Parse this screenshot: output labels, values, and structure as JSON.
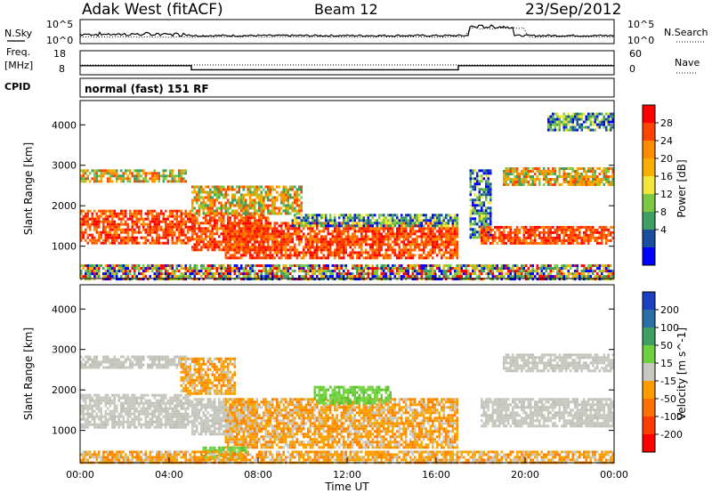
{
  "header": {
    "station": "Adak West (fitACF)",
    "beam": "Beam 12",
    "date": "23/Sep/2012"
  },
  "noise_panel": {
    "left_label": "N.Sky",
    "right_label": "N.Search",
    "left_ticks": [
      "10^5",
      "10^0"
    ],
    "right_ticks": [
      "10^5",
      "10^0"
    ]
  },
  "freq_panel": {
    "left_label_line1": "Freq.",
    "left_label_line2": "[MHz]",
    "right_label": "Nave",
    "left_ticks": [
      "18",
      "8"
    ],
    "right_ticks": [
      "60",
      "0"
    ]
  },
  "cpid_panel": {
    "label": "CPID",
    "text": "normal (fast) 151 RF"
  },
  "power_colorbar": {
    "label": "Power [dB]",
    "ticks": [
      "28",
      "24",
      "20",
      "16",
      "12",
      "8",
      "4"
    ],
    "colors": [
      "#ff0000",
      "#ff4400",
      "#ff8c00",
      "#f7b000",
      "#f2e63a",
      "#7dc843",
      "#3f9f63",
      "#1a4fa0",
      "#0000ff"
    ]
  },
  "velocity_colorbar": {
    "label": "Velocity [m s^-1]",
    "ticks": [
      "200",
      "100",
      "50",
      "15",
      "-15",
      "-50",
      "-100",
      "-200"
    ],
    "colors": [
      "#1a3fc0",
      "#2a6fa8",
      "#3f9f63",
      "#6fd03f",
      "#c8c8c0",
      "#ff9a00",
      "#ff7000",
      "#ff3c00",
      "#ff0000"
    ]
  },
  "chart_data": {
    "type": "heatmap",
    "panels": [
      {
        "name": "power",
        "ylabel": "Slant Range [km]",
        "ylim": [
          200,
          4600
        ],
        "yticks": [
          1000,
          2000,
          3000,
          4000
        ],
        "bands": [
          {
            "x": [
              0,
              5
            ],
            "y": [
              1050,
              1900
            ],
            "level": "strong"
          },
          {
            "x": [
              0,
              4.8
            ],
            "y": [
              2600,
              2900
            ],
            "level": "medium"
          },
          {
            "x": [
              5,
              8.5
            ],
            "y": [
              900,
              1800
            ],
            "level": "strong"
          },
          {
            "x": [
              5,
              10
            ],
            "y": [
              1800,
              2500
            ],
            "level": "medium"
          },
          {
            "x": [
              6.5,
              17
            ],
            "y": [
              700,
              1600
            ],
            "level": "strong"
          },
          {
            "x": [
              9.5,
              17
            ],
            "y": [
              1500,
              1800
            ],
            "level": "weak"
          },
          {
            "x": [
              17.5,
              18.5
            ],
            "y": [
              1200,
              2900
            ],
            "level": "weak"
          },
          {
            "x": [
              18,
              24
            ],
            "y": [
              1100,
              1500
            ],
            "level": "strong"
          },
          {
            "x": [
              19,
              24
            ],
            "y": [
              2500,
              2950
            ],
            "level": "medium"
          },
          {
            "x": [
              21,
              24
            ],
            "y": [
              3900,
              4300
            ],
            "level": "weak"
          },
          {
            "x": [
              0,
              24
            ],
            "y": [
              200,
              550
            ],
            "level": "mixed"
          }
        ]
      },
      {
        "name": "velocity",
        "ylabel": "Slant Range [km]",
        "ylim": [
          200,
          4600
        ],
        "yticks": [
          1000,
          2000,
          3000,
          4000
        ],
        "bands": [
          {
            "x": [
              0,
              5
            ],
            "y": [
              1050,
              1900
            ],
            "level": "gray"
          },
          {
            "x": [
              0,
              4.8
            ],
            "y": [
              2550,
              2850
            ],
            "level": "gray"
          },
          {
            "x": [
              5,
              8
            ],
            "y": [
              900,
              1800
            ],
            "level": "gray"
          },
          {
            "x": [
              4.5,
              7
            ],
            "y": [
              1900,
              2800
            ],
            "level": "orange"
          },
          {
            "x": [
              6.5,
              17
            ],
            "y": [
              600,
              1800
            ],
            "level": "orange"
          },
          {
            "x": [
              10.5,
              14
            ],
            "y": [
              1700,
              2100
            ],
            "level": "green"
          },
          {
            "x": [
              5.5,
              7.5
            ],
            "y": [
              300,
              600
            ],
            "level": "green"
          },
          {
            "x": [
              18,
              24
            ],
            "y": [
              1100,
              1800
            ],
            "level": "gray"
          },
          {
            "x": [
              19,
              24
            ],
            "y": [
              2500,
              2900
            ],
            "level": "gray"
          },
          {
            "x": [
              0,
              24
            ],
            "y": [
              200,
              500
            ],
            "level": "orange"
          }
        ]
      }
    ],
    "xlabel": "Time UT",
    "xlim": [
      0,
      24
    ],
    "xticks": [
      "00:00",
      "04:00",
      "08:00",
      "12:00",
      "16:00",
      "20:00",
      "00:00"
    ],
    "frequency_mhz": {
      "x": [
        0,
        5,
        5,
        17,
        17,
        24
      ],
      "y": [
        12,
        12,
        10,
        10,
        12,
        12
      ]
    }
  }
}
